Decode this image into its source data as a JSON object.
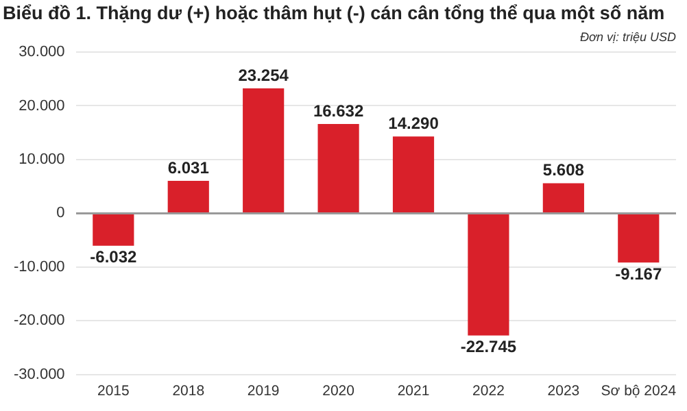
{
  "chart_data": {
    "type": "bar",
    "title": "Biểu đồ 1. Thặng dư (+) hoặc thâm hụt (-) cán cân tổng thể qua một số năm",
    "subtitle": "Đơn vị: triệu USD",
    "categories": [
      "2015",
      "2018",
      "2019",
      "2020",
      "2021",
      "2022",
      "2023",
      "Sơ bộ 2024"
    ],
    "values": [
      -6032,
      6031,
      23254,
      16632,
      14290,
      -22745,
      5608,
      -9167
    ],
    "value_labels": [
      "-6.032",
      "6.031",
      "23.254",
      "16.632",
      "14.290",
      "-22.745",
      "5.608",
      "-9.167"
    ],
    "color": "#d9202a",
    "ylim": [
      -30000,
      30000
    ],
    "yticks": [
      {
        "value": -30000,
        "label": "-30.000"
      },
      {
        "value": -20000,
        "label": "-20.000"
      },
      {
        "value": -10000,
        "label": "-10.000"
      },
      {
        "value": 0,
        "label": "0"
      },
      {
        "value": 10000,
        "label": "10.000"
      },
      {
        "value": 20000,
        "label": "20.000"
      },
      {
        "value": 30000,
        "label": "30.000"
      }
    ],
    "grid": "y"
  }
}
